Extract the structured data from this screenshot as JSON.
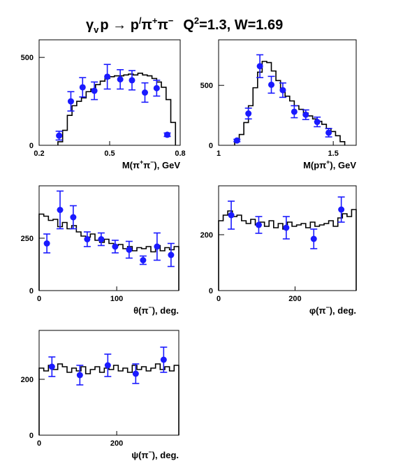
{
  "title": {
    "gamma": "γ",
    "gamma_sub": "v",
    "mid": "p → p",
    "prime": "/",
    "pi1": "π",
    "pi1_sup": "+",
    "pi2": "π",
    "pi2_sup": "−",
    "q": "Q",
    "q_sup": "2",
    "rest": "=1.3, W=1.69"
  },
  "colors": {
    "data_points": "#1a1aff",
    "histogram": "#000000"
  },
  "chart_data": [
    {
      "type": "scatter",
      "id": "mpipi",
      "xlabel": {
        "main": "M(π",
        "sup1": "+",
        "mid": "π",
        "sup2": "−",
        "end": "), GeV"
      },
      "xlim": [
        0.2,
        0.8
      ],
      "ylim": [
        0,
        600
      ],
      "xticks": [
        0.2,
        0.5,
        0.8
      ],
      "xtick_labels": [
        "0.2",
        "0.5",
        "0.8"
      ],
      "yticks": [
        0,
        500
      ],
      "ytick_labels": [
        "0",
        "500"
      ],
      "histogram": {
        "edges": [
          0.28,
          0.3,
          0.32,
          0.34,
          0.36,
          0.38,
          0.4,
          0.42,
          0.44,
          0.46,
          0.48,
          0.5,
          0.52,
          0.54,
          0.56,
          0.58,
          0.6,
          0.62,
          0.64,
          0.66,
          0.68,
          0.7,
          0.72,
          0.74,
          0.76,
          0.78
        ],
        "values": [
          20,
          85,
          170,
          225,
          250,
          270,
          305,
          320,
          345,
          365,
          380,
          390,
          395,
          395,
          400,
          405,
          400,
          410,
          400,
          395,
          380,
          360,
          330,
          260,
          130
        ]
      },
      "points": [
        {
          "x": 0.285,
          "y": 55,
          "err": 25
        },
        {
          "x": 0.335,
          "y": 250,
          "err": 55
        },
        {
          "x": 0.385,
          "y": 330,
          "err": 55
        },
        {
          "x": 0.435,
          "y": 310,
          "err": 50
        },
        {
          "x": 0.49,
          "y": 390,
          "err": 70
        },
        {
          "x": 0.545,
          "y": 375,
          "err": 55
        },
        {
          "x": 0.595,
          "y": 370,
          "err": 55
        },
        {
          "x": 0.65,
          "y": 300,
          "err": 55
        },
        {
          "x": 0.7,
          "y": 325,
          "err": 45
        },
        {
          "x": 0.745,
          "y": 60,
          "err": 10
        }
      ]
    },
    {
      "type": "scatter",
      "id": "mppi",
      "xlabel": {
        "main": "M(pπ",
        "sup1": "+",
        "mid": "",
        "sup2": "",
        "end": "), GeV"
      },
      "xlim": [
        1.0,
        1.6
      ],
      "ylim": [
        0,
        880
      ],
      "xticks": [
        1.0,
        1.5
      ],
      "xtick_labels": [
        "1",
        "1.5"
      ],
      "yticks": [
        0,
        500
      ],
      "ytick_labels": [
        "0",
        "500"
      ],
      "histogram": {
        "edges": [
          1.07,
          1.09,
          1.11,
          1.13,
          1.15,
          1.17,
          1.19,
          1.21,
          1.23,
          1.25,
          1.27,
          1.29,
          1.31,
          1.33,
          1.35,
          1.37,
          1.39,
          1.41,
          1.43,
          1.45,
          1.47,
          1.49,
          1.51,
          1.53,
          1.55
        ],
        "values": [
          40,
          90,
          190,
          330,
          480,
          610,
          700,
          690,
          620,
          540,
          460,
          410,
          370,
          330,
          300,
          270,
          245,
          220,
          200,
          175,
          140,
          115,
          80,
          30
        ]
      },
      "points": [
        {
          "x": 1.08,
          "y": 40,
          "err": 10
        },
        {
          "x": 1.13,
          "y": 265,
          "err": 45
        },
        {
          "x": 1.18,
          "y": 660,
          "err": 95
        },
        {
          "x": 1.23,
          "y": 505,
          "err": 70
        },
        {
          "x": 1.28,
          "y": 460,
          "err": 60
        },
        {
          "x": 1.33,
          "y": 280,
          "err": 50
        },
        {
          "x": 1.38,
          "y": 255,
          "err": 40
        },
        {
          "x": 1.43,
          "y": 195,
          "err": 40
        },
        {
          "x": 1.48,
          "y": 105,
          "err": 35
        }
      ]
    },
    {
      "type": "scatter",
      "id": "theta",
      "xlabel": {
        "main": "θ(π",
        "sup1": "−",
        "mid": "",
        "sup2": "",
        "end": "), deg."
      },
      "xlim": [
        0,
        180
      ],
      "ylim": [
        0,
        500
      ],
      "xticks": [
        0,
        100
      ],
      "xtick_labels": [
        "0",
        "100"
      ],
      "yticks": [
        0,
        250
      ],
      "ytick_labels": [
        "0",
        "250"
      ],
      "histogram": {
        "edges": [
          0,
          6,
          12,
          18,
          24,
          30,
          36,
          42,
          48,
          54,
          60,
          66,
          72,
          78,
          84,
          90,
          96,
          102,
          108,
          114,
          120,
          126,
          132,
          138,
          144,
          150,
          156,
          162,
          168,
          174,
          180
        ],
        "values": [
          365,
          355,
          335,
          340,
          305,
          325,
          295,
          310,
          280,
          260,
          255,
          270,
          240,
          230,
          245,
          225,
          215,
          220,
          200,
          210,
          190,
          205,
          200,
          210,
          185,
          215,
          190,
          205,
          195,
          210
        ]
      },
      "points": [
        {
          "x": 10,
          "y": 225,
          "err": 45
        },
        {
          "x": 27,
          "y": 385,
          "err": 90
        },
        {
          "x": 44,
          "y": 350,
          "err": 55
        },
        {
          "x": 62,
          "y": 245,
          "err": 35
        },
        {
          "x": 80,
          "y": 245,
          "err": 30
        },
        {
          "x": 98,
          "y": 210,
          "err": 30
        },
        {
          "x": 116,
          "y": 195,
          "err": 40
        },
        {
          "x": 134,
          "y": 145,
          "err": 20
        },
        {
          "x": 152,
          "y": 210,
          "err": 65
        },
        {
          "x": 170,
          "y": 170,
          "err": 55
        }
      ]
    },
    {
      "type": "scatter",
      "id": "phi",
      "xlabel": {
        "main": "φ(π",
        "sup1": "−",
        "mid": "",
        "sup2": "",
        "end": "), deg."
      },
      "xlim": [
        0,
        360
      ],
      "ylim": [
        0,
        375
      ],
      "xticks": [
        0,
        200
      ],
      "xtick_labels": [
        "0",
        "200"
      ],
      "yticks": [
        0,
        200
      ],
      "ytick_labels": [
        "0",
        "200"
      ],
      "histogram": {
        "edges": [
          0,
          12,
          24,
          36,
          48,
          60,
          72,
          84,
          96,
          108,
          120,
          132,
          144,
          156,
          168,
          180,
          192,
          204,
          216,
          228,
          240,
          252,
          264,
          276,
          288,
          300,
          312,
          324,
          336,
          348,
          360
        ],
        "values": [
          250,
          270,
          285,
          265,
          270,
          250,
          240,
          255,
          235,
          245,
          230,
          250,
          225,
          240,
          220,
          245,
          230,
          235,
          240,
          225,
          245,
          230,
          235,
          240,
          250,
          230,
          260,
          275,
          265,
          290
        ]
      },
      "points": [
        {
          "x": 33,
          "y": 270,
          "err": 50
        },
        {
          "x": 105,
          "y": 235,
          "err": 30
        },
        {
          "x": 177,
          "y": 225,
          "err": 40
        },
        {
          "x": 249,
          "y": 185,
          "err": 35
        },
        {
          "x": 321,
          "y": 290,
          "err": 45
        }
      ]
    },
    {
      "type": "scatter",
      "id": "psi",
      "xlabel": {
        "main": "ψ(π",
        "sup1": "−",
        "mid": "",
        "sup2": "",
        "end": "), deg."
      },
      "xlim": [
        0,
        360
      ],
      "ylim": [
        0,
        375
      ],
      "xticks": [
        0,
        200
      ],
      "xtick_labels": [
        "0",
        "200"
      ],
      "yticks": [
        0,
        200
      ],
      "ytick_labels": [
        "0",
        "200"
      ],
      "histogram": {
        "edges": [
          0,
          12,
          24,
          36,
          48,
          60,
          72,
          84,
          96,
          108,
          120,
          132,
          144,
          156,
          168,
          180,
          192,
          204,
          216,
          228,
          240,
          252,
          264,
          276,
          288,
          300,
          312,
          324,
          336,
          348,
          360
        ],
        "values": [
          240,
          230,
          250,
          235,
          255,
          245,
          225,
          240,
          230,
          245,
          220,
          235,
          245,
          225,
          240,
          235,
          250,
          230,
          240,
          225,
          250,
          235,
          245,
          230,
          240,
          255,
          235,
          245,
          230,
          250
        ]
      },
      "points": [
        {
          "x": 33,
          "y": 245,
          "err": 35
        },
        {
          "x": 105,
          "y": 215,
          "err": 35
        },
        {
          "x": 177,
          "y": 250,
          "err": 40
        },
        {
          "x": 249,
          "y": 220,
          "err": 35
        },
        {
          "x": 321,
          "y": 270,
          "err": 45
        }
      ]
    }
  ]
}
